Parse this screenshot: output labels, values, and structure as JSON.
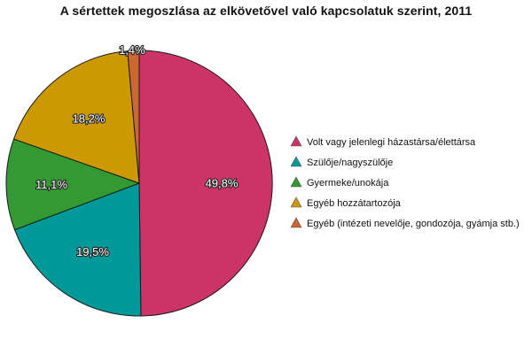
{
  "chart_data": {
    "type": "pie",
    "title": "A sértettek megoszlása az elkövetővel való kapcsolatuk szerint, 2011",
    "legend_position": "right",
    "slices": [
      {
        "label": "Volt vagy jelenlegi házastársa/élettársa",
        "value": 49.8,
        "value_label": "49,8%",
        "color": "#cc3366"
      },
      {
        "label": "Szülője/nagyszülője",
        "value": 19.5,
        "value_label": "19,5%",
        "color": "#009999"
      },
      {
        "label": "Gyermeke/unokája",
        "value": 11.1,
        "value_label": "11,1%",
        "color": "#339933"
      },
      {
        "label": "Egyéb hozzátartozója",
        "value": 18.2,
        "value_label": "18,2%",
        "color": "#cc9900"
      },
      {
        "label": "Egyéb (intézeti nevelője, gondozója, gyámja stb.)",
        "value": 1.4,
        "value_label": "1,4%",
        "color": "#cc6633"
      }
    ]
  }
}
